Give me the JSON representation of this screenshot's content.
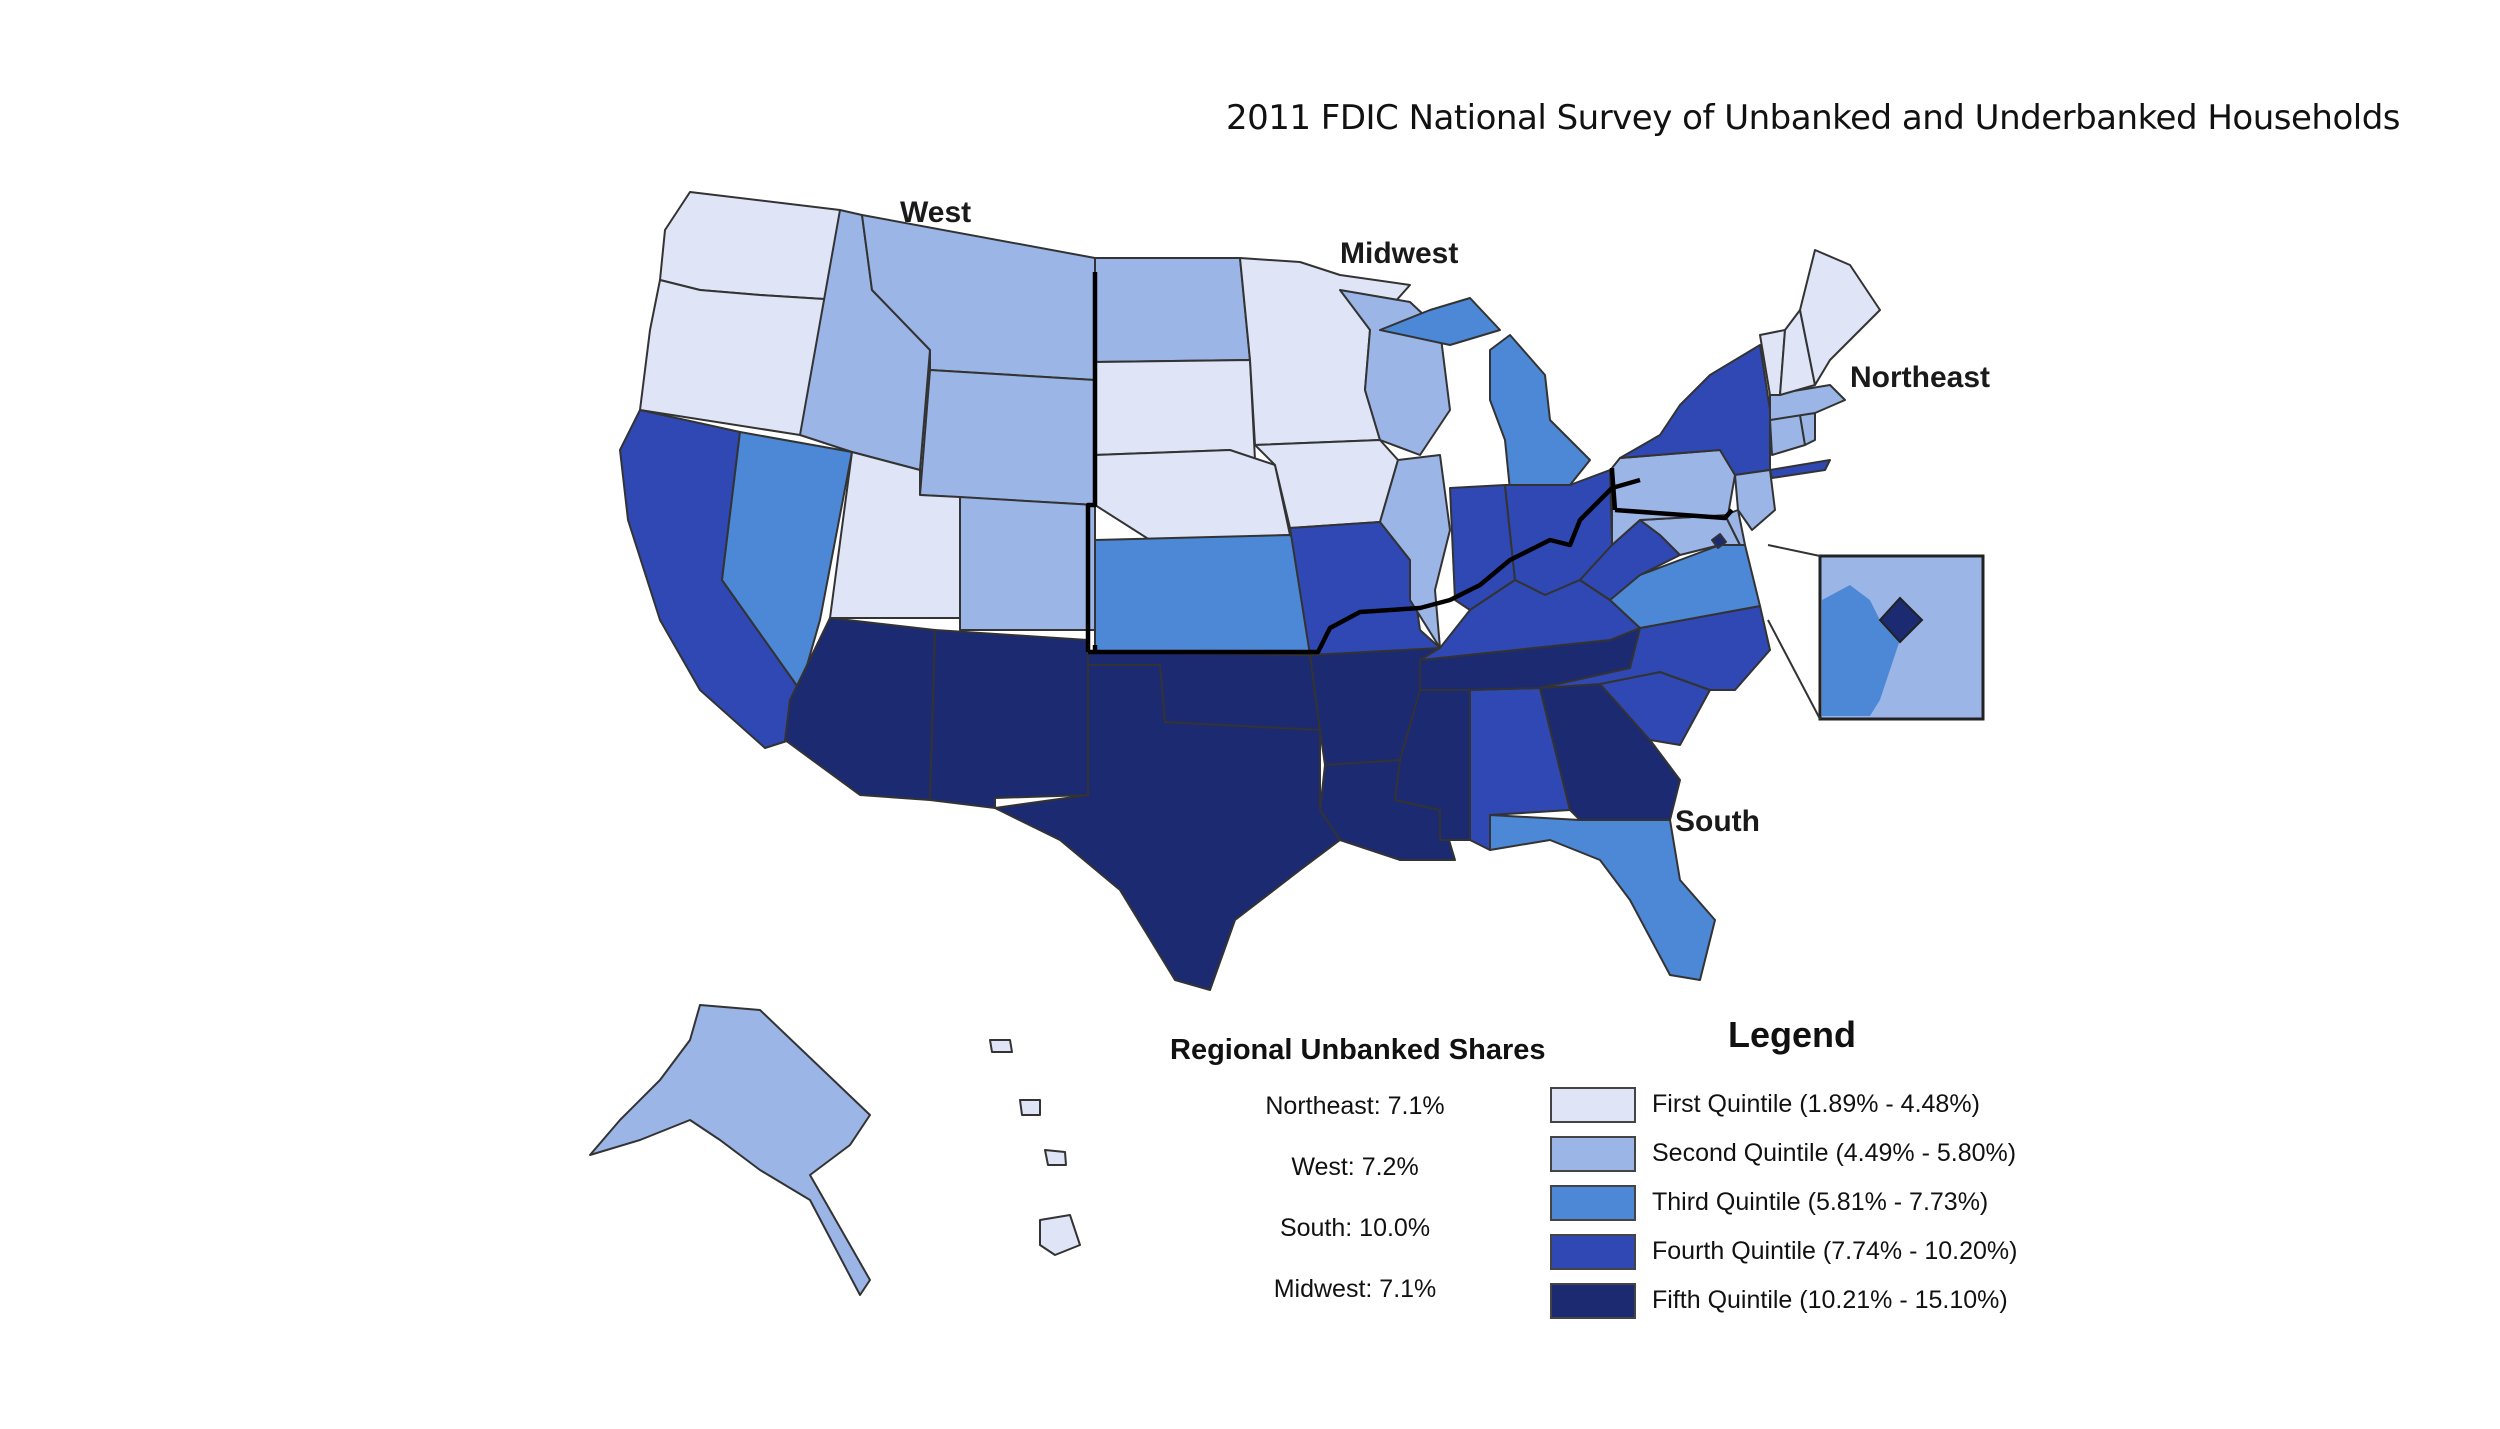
{
  "title": "2011 FDIC National Survey of Unbanked and Underbanked Households",
  "regions": [
    {
      "key": "west",
      "label": "West"
    },
    {
      "key": "midwest",
      "label": "Midwest"
    },
    {
      "key": "northeast",
      "label": "Northeast"
    },
    {
      "key": "south",
      "label": "South"
    }
  ],
  "regional_shares": {
    "title": "Regional Unbanked Shares",
    "items": [
      "Northeast:  7.1%",
      "West:  7.2%",
      "South:  10.0%",
      "Midwest:  7.1%"
    ]
  },
  "legend": {
    "title": "Legend",
    "items": [
      {
        "label": "First Quintile (1.89% - 4.48%)",
        "color": "#dfe5f6"
      },
      {
        "label": "Second Quintile (4.49% - 5.80%)",
        "color": "#9bb5e6"
      },
      {
        "label": "Third Quintile (5.81% - 7.73%)",
        "color": "#4d88d6"
      },
      {
        "label": "Fourth Quintile (7.74% - 10.20%)",
        "color": "#2f48b4"
      },
      {
        "label": "Fifth Quintile (10.21% - 15.10%)",
        "color": "#1c2a72"
      }
    ]
  },
  "state_quintiles": {
    "WA": 1,
    "OR": 1,
    "CA": 4,
    "NV": 3,
    "ID": 2,
    "MT": 2,
    "WY": 2,
    "UT": 1,
    "CO": 2,
    "AZ": 5,
    "NM": 5,
    "ND": 2,
    "SD": 1,
    "NE": 1,
    "KS": 3,
    "MN": 1,
    "IA": 1,
    "MO": 4,
    "WI": 2,
    "IL": 2,
    "MI": 3,
    "IN": 4,
    "OH": 4,
    "TX": 5,
    "OK": 5,
    "AR": 5,
    "LA": 5,
    "MS": 5,
    "AL": 4,
    "TN": 5,
    "KY": 4,
    "GA": 5,
    "FL": 3,
    "SC": 4,
    "NC": 4,
    "VA": 3,
    "WV": 4,
    "MD": 2,
    "DE": 2,
    "DC": 5,
    "PA": 2,
    "NY": 4,
    "NJ": 2,
    "CT": 2,
    "RI": 2,
    "MA": 2,
    "VT": 1,
    "NH": 1,
    "ME": 1,
    "AK": 2,
    "HI": 1
  }
}
